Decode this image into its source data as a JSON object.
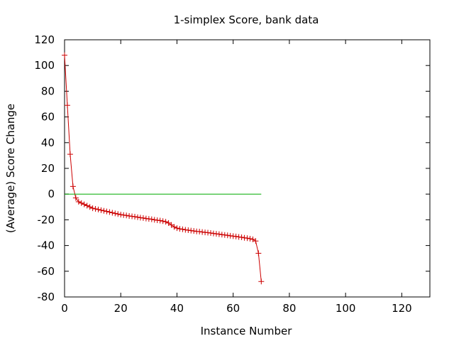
{
  "chart_data": {
    "type": "line",
    "title": "1-simplex Score, bank data",
    "xlabel": "Instance Number",
    "ylabel": "(Average) Score Change",
    "xlim": [
      0,
      130
    ],
    "ylim": [
      -80,
      120
    ],
    "x_ticks": [
      0,
      20,
      40,
      60,
      80,
      100,
      120
    ],
    "y_ticks": [
      -80,
      -60,
      -40,
      -20,
      0,
      20,
      40,
      60,
      80,
      100,
      120
    ],
    "grid": false,
    "legend": "none",
    "series": [
      {
        "color": "#cc0000",
        "marker": "plus",
        "x": [
          0,
          1,
          2,
          3,
          4,
          5,
          6,
          7,
          8,
          9,
          10,
          11,
          12,
          13,
          14,
          15,
          16,
          17,
          18,
          19,
          20,
          21,
          22,
          23,
          24,
          25,
          26,
          27,
          28,
          29,
          30,
          31,
          32,
          33,
          34,
          35,
          36,
          37,
          38,
          39,
          40,
          41,
          42,
          43,
          44,
          45,
          46,
          47,
          48,
          49,
          50,
          51,
          52,
          53,
          54,
          55,
          56,
          57,
          58,
          59,
          60,
          61,
          62,
          63,
          64,
          65,
          66,
          67,
          68,
          69,
          70
        ],
        "y": [
          108,
          69,
          31,
          6,
          -3,
          -6,
          -7,
          -8,
          -9,
          -10,
          -11,
          -11.5,
          -12,
          -12.5,
          -13,
          -13.5,
          -14,
          -14.5,
          -15,
          -15.5,
          -16,
          -16.3,
          -16.6,
          -17,
          -17.3,
          -17.6,
          -18,
          -18.3,
          -18.6,
          -19,
          -19.3,
          -19.6,
          -20,
          -20.3,
          -20.6,
          -21,
          -21.5,
          -22.5,
          -24,
          -25.5,
          -26.5,
          -27,
          -27.4,
          -27.8,
          -28.1,
          -28.4,
          -28.7,
          -29,
          -29.2,
          -29.5,
          -29.8,
          -30,
          -30.3,
          -30.6,
          -30.9,
          -31.2,
          -31.5,
          -31.8,
          -32.1,
          -32.4,
          -32.7,
          -33,
          -33.3,
          -33.6,
          -34,
          -34.3,
          -34.7,
          -35.2,
          -36.5,
          -46,
          -68
        ]
      },
      {
        "color": "#00aa00",
        "marker": "none",
        "x": [
          0,
          70
        ],
        "y": [
          0,
          0
        ]
      }
    ]
  }
}
